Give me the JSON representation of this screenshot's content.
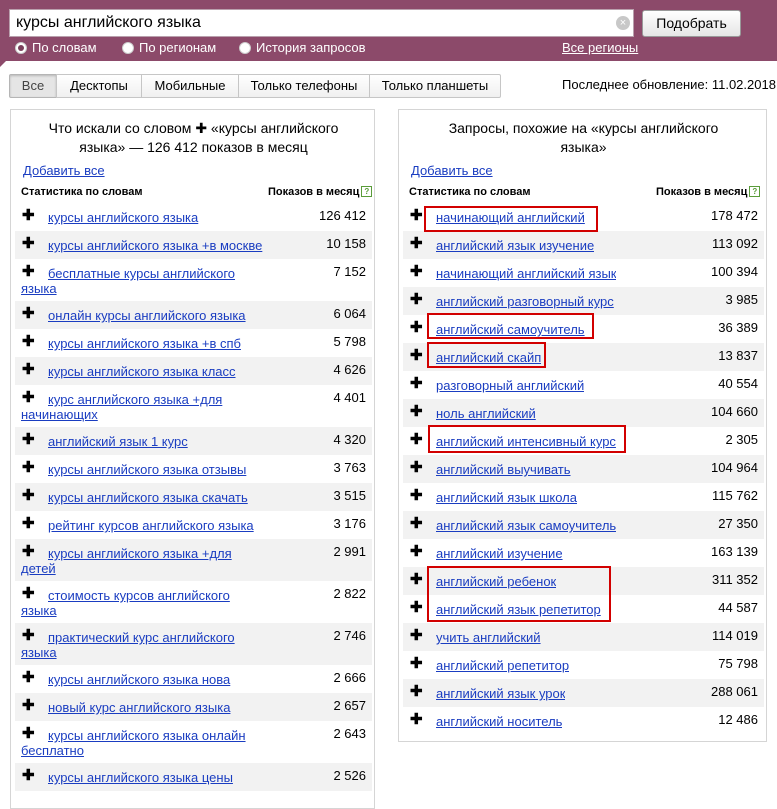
{
  "search": {
    "query": "курсы английского языка",
    "submit_label": "Подобрать",
    "clear_glyph": "×"
  },
  "modes": [
    {
      "label": "По словам",
      "selected": true
    },
    {
      "label": "По регионам",
      "selected": false
    },
    {
      "label": "История запросов",
      "selected": false
    }
  ],
  "regions_link": "Все регионы",
  "device_tabs": [
    "Все",
    "Десктопы",
    "Мобильные",
    "Только телефоны",
    "Только планшеты"
  ],
  "last_update": "Последнее обновление: 11.02.2018",
  "colors": {
    "header": "#8c4a6a",
    "link": "#1a3dc1",
    "highlight": "#d20000"
  },
  "left_panel": {
    "title_line1": "Что искали со словом  ✚  «курсы английского",
    "title_line2": "языка» — 126 412 показов в месяц",
    "add_all": "Добавить все",
    "col_keywords": "Статистика по словам",
    "col_count": "Показов в месяц",
    "help_glyph": "?",
    "rows": [
      {
        "kw1": "курсы английского языка",
        "kw2": "",
        "count": "126 412"
      },
      {
        "kw1": "курсы английского языка +в москве",
        "kw2": "",
        "count": "10 158"
      },
      {
        "kw1": "бесплатные курсы английского",
        "kw2": "языка",
        "count": "7 152"
      },
      {
        "kw1": "онлайн курсы английского языка",
        "kw2": "",
        "count": "6 064"
      },
      {
        "kw1": "курсы английского языка +в спб",
        "kw2": "",
        "count": "5 798"
      },
      {
        "kw1": "курсы английского языка класс",
        "kw2": "",
        "count": "4 626"
      },
      {
        "kw1": "курс английского языка +для",
        "kw2": "начинающих",
        "count": "4 401"
      },
      {
        "kw1": "английский язык 1 курс",
        "kw2": "",
        "count": "4 320"
      },
      {
        "kw1": "курсы английского языка отзывы",
        "kw2": "",
        "count": "3 763"
      },
      {
        "kw1": "курсы английского языка скачать",
        "kw2": "",
        "count": "3 515"
      },
      {
        "kw1": "рейтинг курсов английского языка",
        "kw2": "",
        "count": "3 176"
      },
      {
        "kw1": "курсы английского языка +для",
        "kw2": "детей",
        "count": "2 991"
      },
      {
        "kw1": "стоимость курсов английского",
        "kw2": "языка",
        "count": "2 822"
      },
      {
        "kw1": "практический курс английского",
        "kw2": "языка",
        "count": "2 746"
      },
      {
        "kw1": "курсы английского языка нова",
        "kw2": "",
        "count": "2 666"
      },
      {
        "kw1": "новый курс английского языка",
        "kw2": "",
        "count": "2 657"
      },
      {
        "kw1": "курсы английского языка онлайн",
        "kw2": "бесплатно",
        "count": "2 643"
      },
      {
        "kw1": "курсы английского языка цены",
        "kw2": "",
        "count": "2 526"
      }
    ]
  },
  "right_panel": {
    "title_line1": "Запросы, похожие на «курсы английского",
    "title_line2": "языка»",
    "add_all": "Добавить все",
    "col_keywords": "Статистика по словам",
    "col_count": "Показов в месяц",
    "help_glyph": "?",
    "rows": [
      {
        "kw": "начинающий английский",
        "count": "178 472"
      },
      {
        "kw": "английский язык изучение",
        "count": "113 092"
      },
      {
        "kw": "начинающий английский язык",
        "count": "100 394"
      },
      {
        "kw": "английский разговорный курс",
        "count": "3 985"
      },
      {
        "kw": "английский самоучитель",
        "count": "36 389"
      },
      {
        "kw": "английский скайп",
        "count": "13 837"
      },
      {
        "kw": "разговорный английский",
        "count": "40 554"
      },
      {
        "kw": "ноль английский",
        "count": "104 660"
      },
      {
        "kw": "английский интенсивный курс",
        "count": "2 305"
      },
      {
        "kw": "английский выучивать",
        "count": "104 964"
      },
      {
        "kw": "английский язык школа",
        "count": "115 762"
      },
      {
        "kw": "английский язык самоучитель",
        "count": "27 350"
      },
      {
        "kw": "английский изучение",
        "count": "163 139"
      },
      {
        "kw": "английский ребенок",
        "count": "311 352"
      },
      {
        "kw": "английский язык репетитор",
        "count": "44 587"
      },
      {
        "kw": "учить английский",
        "count": "114 019"
      },
      {
        "kw": "английский репетитор",
        "count": "75 798"
      },
      {
        "kw": "английский язык урок",
        "count": "288 061"
      },
      {
        "kw": "английский носитель",
        "count": "12 486"
      }
    ]
  }
}
